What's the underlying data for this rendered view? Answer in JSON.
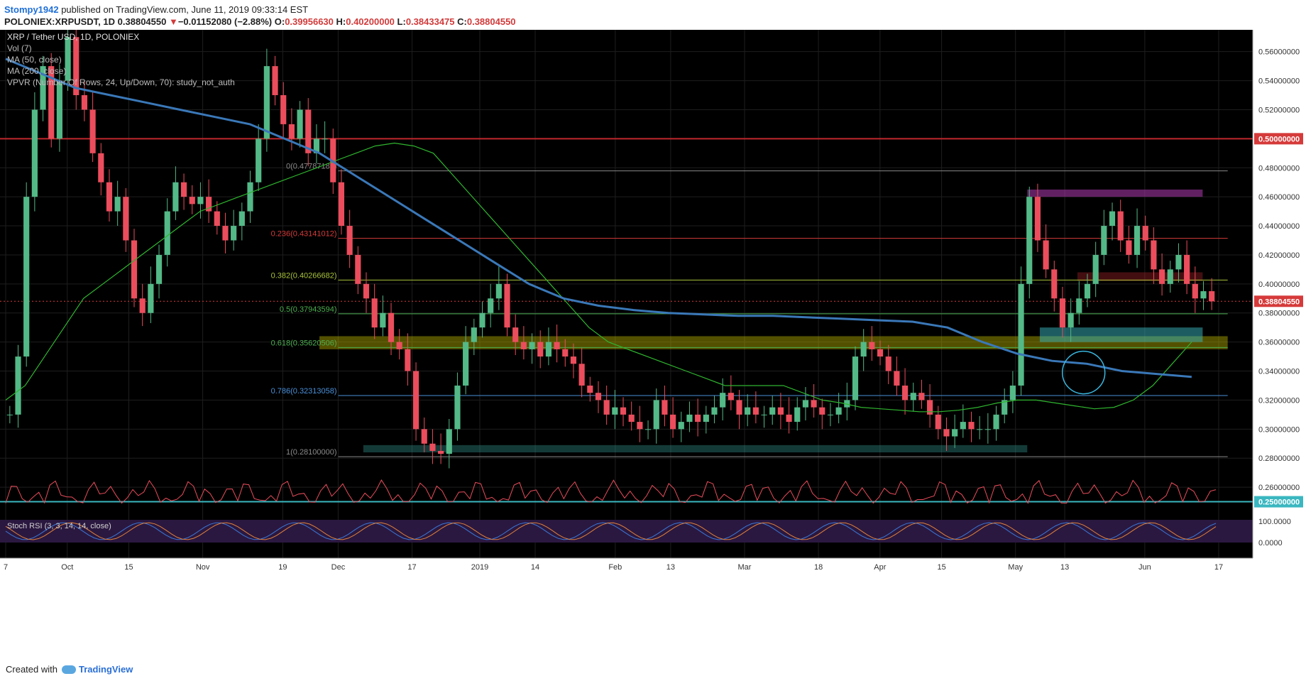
{
  "header": {
    "author": "Stompy1942",
    "published_text": " published on TradingView.com, June 11, 2019 09:33:14 EST",
    "symbol": "POLONIEX:XRPUSDT, 1D",
    "price": "0.38804550",
    "down_marker": "▼",
    "change": "−0.01152080 (−2.88%)",
    "o_label": "O:",
    "o": "0.39956630",
    "h_label": "H:",
    "h": "0.40200000",
    "l_label": "L:",
    "l": "0.38433475",
    "c_label": "C:",
    "c": "0.38804550"
  },
  "legend": [
    "XRP / Tether USD, 1D, POLONIEX",
    "Vol (7)",
    "MA (50, close)",
    "MA (200, close)",
    "VPVR (Number Of Rows, 24, Up/Down, 70): study_not_auth"
  ],
  "footer": {
    "created_with": "Created with",
    "brand": "TradingView"
  },
  "colors": {
    "background": "#000000",
    "up": "#53b987",
    "down": "#eb4d5c",
    "ma50": "#2fb52f",
    "ma200": "#3a78b8",
    "resistance": "#c0272d",
    "price_label": "#d63a3a"
  },
  "chart_data": {
    "type": "candlestick",
    "title": "XRP / Tether USD, 1D, POLONIEX",
    "ylim": [
      0.24,
      0.575
    ],
    "y_ticks": [
      "0.56000000",
      "0.54000000",
      "0.52000000",
      "0.50000000",
      "0.48000000",
      "0.46000000",
      "0.44000000",
      "0.42000000",
      "0.40000000",
      "0.38804550",
      "0.38000000",
      "0.36000000",
      "0.34000000",
      "0.32000000",
      "0.30000000",
      "0.28000000",
      "0.26000000",
      "0.25000000"
    ],
    "highlighted_ticks": [
      "0.50000000",
      "0.38804550",
      "0.25000000"
    ],
    "x_ticks": [
      "7",
      "Oct",
      "15",
      "Nov",
      "19",
      "Dec",
      "17",
      "2019",
      "14",
      "Feb",
      "13",
      "Mar",
      "18",
      "Apr",
      "15",
      "May",
      "13",
      "Jun",
      "17"
    ],
    "x_positions": [
      0.0,
      0.05,
      0.1,
      0.16,
      0.225,
      0.27,
      0.33,
      0.385,
      0.43,
      0.495,
      0.54,
      0.6,
      0.66,
      0.71,
      0.76,
      0.82,
      0.86,
      0.925,
      0.985
    ],
    "last_price": 0.3880455,
    "resistance_level": 0.5,
    "fibonacci": [
      {
        "label": "0(0.47787189)",
        "value": 0.47787189,
        "color": "#8a8a8a"
      },
      {
        "label": "0.236(0.43141012)",
        "value": 0.43141012,
        "color": "#d63a3a"
      },
      {
        "label": "0.382(0.40266682)",
        "value": 0.40266682,
        "color": "#a8c23a"
      },
      {
        "label": "0.5(0.37943594)",
        "value": 0.37943594,
        "color": "#4caf50"
      },
      {
        "label": "0.618(0.35620506)",
        "value": 0.35620506,
        "color": "#4caf50"
      },
      {
        "label": "0.786(0.32313058)",
        "value": 0.32313058,
        "color": "#4a90d9"
      },
      {
        "label": "1(0.28100000)",
        "value": 0.281,
        "color": "#8a8a8a"
      }
    ],
    "closes": [
      0.31,
      0.35,
      0.46,
      0.52,
      0.55,
      0.5,
      0.54,
      0.57,
      0.53,
      0.52,
      0.49,
      0.47,
      0.45,
      0.46,
      0.43,
      0.39,
      0.38,
      0.4,
      0.42,
      0.45,
      0.47,
      0.46,
      0.455,
      0.46,
      0.45,
      0.44,
      0.43,
      0.44,
      0.45,
      0.47,
      0.5,
      0.55,
      0.53,
      0.51,
      0.5,
      0.52,
      0.49,
      0.5,
      0.5,
      0.47,
      0.44,
      0.42,
      0.4,
      0.39,
      0.37,
      0.38,
      0.36,
      0.355,
      0.34,
      0.3,
      0.29,
      0.285,
      0.283,
      0.3,
      0.33,
      0.36,
      0.37,
      0.38,
      0.39,
      0.4,
      0.37,
      0.36,
      0.355,
      0.36,
      0.35,
      0.36,
      0.355,
      0.35,
      0.345,
      0.33,
      0.325,
      0.32,
      0.31,
      0.315,
      0.31,
      0.305,
      0.3,
      0.3,
      0.32,
      0.31,
      0.3,
      0.305,
      0.31,
      0.305,
      0.31,
      0.315,
      0.325,
      0.32,
      0.31,
      0.315,
      0.31,
      0.31,
      0.315,
      0.31,
      0.305,
      0.315,
      0.32,
      0.315,
      0.31,
      0.31,
      0.315,
      0.32,
      0.35,
      0.36,
      0.355,
      0.35,
      0.34,
      0.33,
      0.32,
      0.325,
      0.32,
      0.31,
      0.3,
      0.295,
      0.3,
      0.305,
      0.3,
      0.3,
      0.3,
      0.31,
      0.32,
      0.33,
      0.4,
      0.46,
      0.43,
      0.41,
      0.39,
      0.37,
      0.38,
      0.39,
      0.4,
      0.42,
      0.44,
      0.45,
      0.43,
      0.42,
      0.44,
      0.43,
      0.41,
      0.4,
      0.41,
      0.42,
      0.4,
      0.39,
      0.395,
      0.388
    ],
    "ma50": [
      0.32,
      0.33,
      0.35,
      0.37,
      0.39,
      0.4,
      0.41,
      0.42,
      0.43,
      0.44,
      0.45,
      0.455,
      0.46,
      0.465,
      0.47,
      0.475,
      0.48,
      0.485,
      0.49,
      0.495,
      0.497,
      0.495,
      0.49,
      0.475,
      0.46,
      0.445,
      0.43,
      0.415,
      0.4,
      0.385,
      0.37,
      0.36,
      0.355,
      0.35,
      0.345,
      0.34,
      0.335,
      0.33,
      0.33,
      0.33,
      0.33,
      0.325,
      0.32,
      0.318,
      0.315,
      0.314,
      0.313,
      0.312,
      0.312,
      0.313,
      0.315,
      0.318,
      0.32,
      0.32,
      0.318,
      0.316,
      0.314,
      0.315,
      0.32,
      0.33,
      0.345,
      0.36
    ],
    "ma200": [
      0.555,
      0.545,
      0.535,
      0.53,
      0.525,
      0.52,
      0.515,
      0.51,
      0.5,
      0.49,
      0.475,
      0.46,
      0.445,
      0.43,
      0.415,
      0.4,
      0.39,
      0.385,
      0.382,
      0.38,
      0.379,
      0.378,
      0.378,
      0.377,
      0.376,
      0.375,
      0.374,
      0.37,
      0.36,
      0.352,
      0.347,
      0.345,
      0.34,
      0.338,
      0.336
    ]
  }
}
